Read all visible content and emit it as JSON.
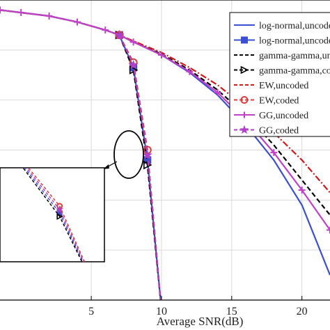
{
  "chart_data": {
    "type": "line",
    "title": "",
    "xlabel": "Average SNR(dB)",
    "ylabel": "",
    "xlim": [
      -1.5,
      22
    ],
    "ylog": true,
    "ylim_log10": [
      -6,
      0
    ],
    "xticks": [
      "5",
      "10",
      "15",
      "20"
    ],
    "xtick_values": [
      5,
      10,
      15,
      20
    ],
    "grid": true,
    "legend_position": "top-right",
    "series": [
      {
        "name": "log-normal,uncoded",
        "color": "#3a4fd1",
        "dash": "solid",
        "marker": "none",
        "x": [
          -1.5,
          2,
          4,
          6,
          7,
          8,
          10,
          12,
          14,
          16,
          18,
          20,
          22
        ],
        "log10y": [
          -0.2,
          -0.32,
          -0.44,
          -0.6,
          -0.7,
          -0.84,
          -1.1,
          -1.45,
          -1.9,
          -2.5,
          -3.2,
          -4.1,
          -5.5
        ]
      },
      {
        "name": "log-normal,uncoded",
        "color": "#3a4fd1",
        "dash": "solid",
        "marker": "square",
        "x": [
          7,
          8,
          9,
          10
        ],
        "log10y": [
          -0.7,
          -1.35,
          -3.2,
          -6.2
        ]
      },
      {
        "name": "gamma-gamma,uncoded",
        "color": "#000000",
        "dash": "dashed",
        "marker": "none",
        "x": [
          -1.5,
          2,
          4,
          6,
          7,
          8,
          10,
          12,
          14,
          16,
          18,
          20,
          22
        ],
        "log10y": [
          -0.2,
          -0.32,
          -0.44,
          -0.6,
          -0.7,
          -0.84,
          -1.08,
          -1.4,
          -1.8,
          -2.3,
          -2.9,
          -3.6,
          -4.3
        ]
      },
      {
        "name": "gamma-gamma,coded",
        "color": "#000000",
        "dash": "dashed",
        "marker": "triangle",
        "x": [
          7,
          8,
          9,
          10
        ],
        "log10y": [
          -0.7,
          -1.4,
          -3.3,
          -6.2
        ]
      },
      {
        "name": "EW,uncoded",
        "color": "#d01818",
        "dash": "dashdot",
        "marker": "none",
        "x": [
          -1.5,
          2,
          4,
          6,
          7,
          8,
          10,
          12,
          14,
          16,
          18,
          20,
          22
        ],
        "log10y": [
          -0.2,
          -0.32,
          -0.44,
          -0.6,
          -0.7,
          -0.82,
          -1.05,
          -1.35,
          -1.7,
          -2.15,
          -2.65,
          -3.2,
          -3.85
        ]
      },
      {
        "name": "EW,coded",
        "color": "#e03a3a",
        "dash": "dashed",
        "marker": "circle",
        "x": [
          7,
          8,
          9,
          10
        ],
        "log10y": [
          -0.7,
          -1.25,
          -3.0,
          -6.2
        ]
      },
      {
        "name": "GG,uncoded",
        "color": "#c040c8",
        "dash": "solid",
        "marker": "plus",
        "x": [
          -1.5,
          0,
          2,
          4,
          6,
          7,
          8,
          10,
          12,
          14,
          16,
          18,
          20,
          22
        ],
        "log10y": [
          -0.2,
          -0.25,
          -0.32,
          -0.44,
          -0.6,
          -0.7,
          -0.84,
          -1.1,
          -1.43,
          -1.85,
          -2.4,
          -3.05,
          -3.8,
          -4.6
        ]
      },
      {
        "name": "GG,coded",
        "color": "#b040c8",
        "dash": "dashed",
        "marker": "star",
        "x": [
          7,
          8,
          9,
          10
        ],
        "log10y": [
          -0.7,
          -1.3,
          -3.1,
          -6.2
        ]
      }
    ]
  },
  "legend": {
    "entries": [
      "log-normal,uncoded",
      "log-normal,uncoded",
      "gamma-gamma,uncoded",
      "gamma-gamma,coded",
      "EW,uncoded",
      "EW,coded",
      "GG,uncoded",
      "GG,coded"
    ]
  }
}
